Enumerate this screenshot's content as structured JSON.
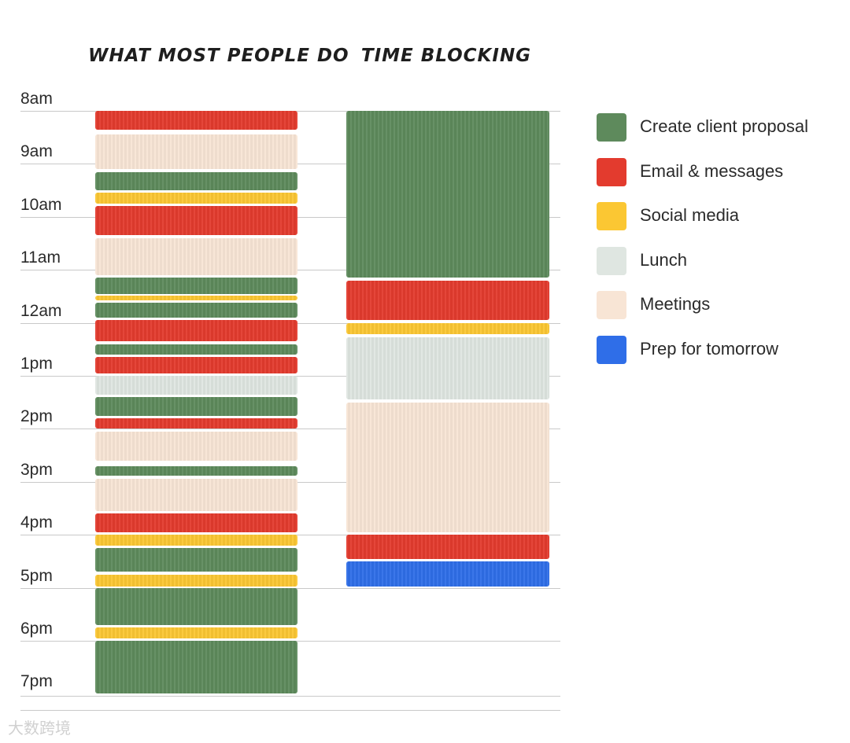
{
  "columns": {
    "left_title": "WHAT MOST PEOPLE DO",
    "right_title": "TIME BLOCKING"
  },
  "hours": [
    "8am",
    "9am",
    "10am",
    "11am",
    "12am",
    "1pm",
    "2pm",
    "3pm",
    "4pm",
    "5pm",
    "6pm",
    "7pm"
  ],
  "categories": {
    "proposal": {
      "label": "Create client proposal",
      "color": "#5e8a5c"
    },
    "email": {
      "label": "Email & messages",
      "color": "#e33b2e"
    },
    "social": {
      "label": "Social media",
      "color": "#fbc733"
    },
    "lunch": {
      "label": "Lunch",
      "color": "#dfe6e1"
    },
    "meetings": {
      "label": "Meetings",
      "color": "#f8e5d5"
    },
    "prep": {
      "label": "Prep for tomorrow",
      "color": "#2f6ee8"
    }
  },
  "legend_order": [
    "proposal",
    "email",
    "social",
    "lunch",
    "meetings",
    "prep"
  ],
  "schedules": {
    "most_people": [
      {
        "cat": "email",
        "start": 8.0,
        "end": 8.35
      },
      {
        "cat": "meetings",
        "start": 8.45,
        "end": 9.1
      },
      {
        "cat": "proposal",
        "start": 9.15,
        "end": 9.5
      },
      {
        "cat": "social",
        "start": 9.55,
        "end": 9.75
      },
      {
        "cat": "email",
        "start": 9.8,
        "end": 10.35
      },
      {
        "cat": "meetings",
        "start": 10.4,
        "end": 11.1
      },
      {
        "cat": "proposal",
        "start": 11.15,
        "end": 11.45
      },
      {
        "cat": "social",
        "start": 11.48,
        "end": 11.58
      },
      {
        "cat": "proposal",
        "start": 11.62,
        "end": 11.9
      },
      {
        "cat": "email",
        "start": 11.95,
        "end": 12.35
      },
      {
        "cat": "proposal",
        "start": 12.4,
        "end": 12.6
      },
      {
        "cat": "email",
        "start": 12.65,
        "end": 12.95
      },
      {
        "cat": "lunch",
        "start": 13.0,
        "end": 13.35
      },
      {
        "cat": "proposal",
        "start": 13.4,
        "end": 13.75
      },
      {
        "cat": "email",
        "start": 13.8,
        "end": 14.0
      },
      {
        "cat": "meetings",
        "start": 14.05,
        "end": 14.6
      },
      {
        "cat": "proposal",
        "start": 14.7,
        "end": 14.88
      },
      {
        "cat": "meetings",
        "start": 14.95,
        "end": 15.55
      },
      {
        "cat": "email",
        "start": 15.6,
        "end": 15.95
      },
      {
        "cat": "social",
        "start": 16.0,
        "end": 16.2
      },
      {
        "cat": "proposal",
        "start": 16.25,
        "end": 16.7
      },
      {
        "cat": "social",
        "start": 16.75,
        "end": 16.98
      },
      {
        "cat": "proposal",
        "start": 17.0,
        "end": 17.7
      },
      {
        "cat": "social",
        "start": 17.75,
        "end": 17.95
      },
      {
        "cat": "proposal",
        "start": 18.0,
        "end": 19.0
      }
    ],
    "time_blocking": [
      {
        "cat": "proposal",
        "start": 8.0,
        "end": 11.15
      },
      {
        "cat": "email",
        "start": 11.2,
        "end": 11.95
      },
      {
        "cat": "social",
        "start": 12.0,
        "end": 12.22
      },
      {
        "cat": "lunch",
        "start": 12.28,
        "end": 13.45
      },
      {
        "cat": "meetings",
        "start": 13.5,
        "end": 15.95
      },
      {
        "cat": "email",
        "start": 16.0,
        "end": 16.45
      },
      {
        "cat": "prep",
        "start": 16.5,
        "end": 16.98
      }
    ]
  },
  "watermark": "大数跨境"
}
